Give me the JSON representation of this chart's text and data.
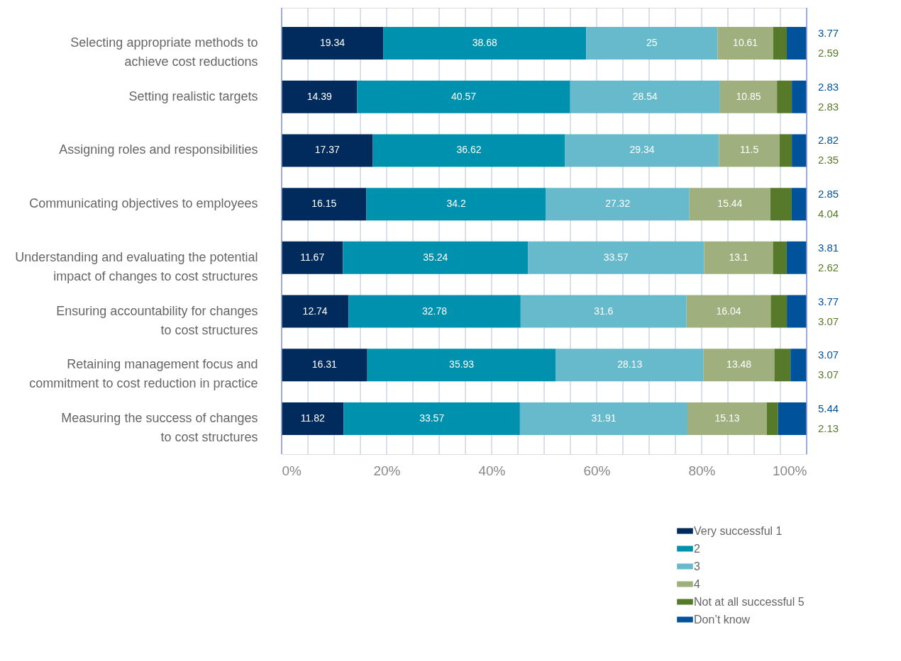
{
  "chart_data": {
    "type": "bar",
    "orientation": "horizontal",
    "stacked": true,
    "data_labels": true,
    "grid": "x",
    "legend": "bottom right",
    "categories": [
      "Selecting appropriate methods to\nachieve cost reductions",
      "Setting realistic targets",
      "Assigning roles and responsibilities",
      "Communicating objectives to employees",
      "Understanding and evaluating the potential\nimpact of changes to cost structures",
      "Ensuring accountability for changes\nto cost structures",
      "Retaining management focus and\ncommitment to cost reduction in practice",
      "Measuring the success of changes\nto cost structures"
    ],
    "series": [
      {
        "name": "Very successful 1",
        "color": "#002b5c",
        "values": [
          19.34,
          14.39,
          17.37,
          16.15,
          11.67,
          12.74,
          16.31,
          11.82
        ]
      },
      {
        "name": "2",
        "color": "#0091ae",
        "values": [
          38.68,
          40.57,
          36.62,
          34.2,
          35.24,
          32.78,
          35.93,
          33.57
        ]
      },
      {
        "name": "3",
        "color": "#67bacb",
        "values": [
          25,
          28.54,
          29.34,
          27.32,
          33.57,
          31.6,
          28.13,
          31.91
        ]
      },
      {
        "name": "4",
        "color": "#9fb07e",
        "values": [
          10.61,
          10.85,
          11.5,
          15.44,
          13.1,
          16.04,
          13.48,
          15.13
        ]
      },
      {
        "name": "Not at all successful 5",
        "color": "#577a2a",
        "values": [
          2.59,
          2.83,
          2.35,
          4.04,
          2.62,
          3.07,
          3.07,
          2.13
        ]
      },
      {
        "name": "Don’t know",
        "color": "#00529b",
        "values": [
          3.77,
          2.83,
          2.82,
          2.85,
          3.81,
          3.77,
          3.07,
          5.44
        ]
      }
    ],
    "xlim": [
      0,
      100
    ],
    "xticks": [
      {
        "value": 0,
        "label": "0%"
      },
      {
        "value": 5,
        "label": null
      },
      {
        "value": 10,
        "label": null
      },
      {
        "value": 15,
        "label": null
      },
      {
        "value": 20,
        "label": "20%"
      },
      {
        "value": 25,
        "label": null
      },
      {
        "value": 30,
        "label": null
      },
      {
        "value": 35,
        "label": null
      },
      {
        "value": 40,
        "label": "40%"
      },
      {
        "value": 45,
        "label": null
      },
      {
        "value": 50,
        "label": null
      },
      {
        "value": 55,
        "label": null
      },
      {
        "value": 60,
        "label": "60%"
      },
      {
        "value": 65,
        "label": null
      },
      {
        "value": 70,
        "label": null
      },
      {
        "value": 75,
        "label": null
      },
      {
        "value": 80,
        "label": "80%"
      },
      {
        "value": 85,
        "label": null
      },
      {
        "value": 90,
        "label": null
      },
      {
        "value": 95,
        "label": null
      },
      {
        "value": 100,
        "label": "100%"
      }
    ]
  }
}
